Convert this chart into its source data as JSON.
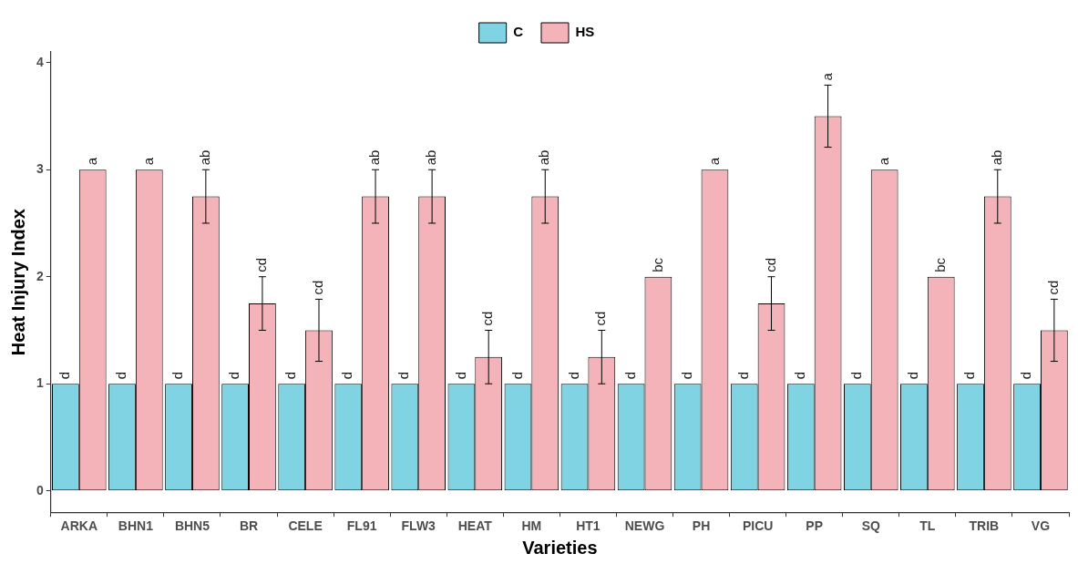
{
  "chart_data": {
    "type": "bar",
    "xlabel": "Varieties",
    "ylabel": "Heat Injury Index",
    "categories": [
      "ARKA",
      "BHN1",
      "BHN5",
      "BR",
      "CELE",
      "FL91",
      "FLW3",
      "HEAT",
      "HM",
      "HT1",
      "NEWG",
      "PH",
      "PICU",
      "PP",
      "SQ",
      "TL",
      "TRIB",
      "VG"
    ],
    "series": [
      {
        "name": "C",
        "color": "#80d3e3",
        "values": [
          1,
          1,
          1,
          1,
          1,
          1,
          1,
          1,
          1,
          1,
          1,
          1,
          1,
          1,
          1,
          1,
          1,
          1
        ],
        "value_labels": [
          "d",
          "d",
          "d",
          "d",
          "d",
          "d",
          "d",
          "d",
          "d",
          "d",
          "d",
          "d",
          "d",
          "d",
          "d",
          "d",
          "d",
          "d"
        ]
      },
      {
        "name": "HS",
        "color": "#f4b3b8",
        "values": [
          3,
          3,
          2.75,
          1.75,
          1.5,
          2.75,
          2.75,
          1.25,
          2.75,
          1.25,
          2,
          3,
          1.75,
          3.5,
          3,
          2,
          2.75,
          1.5
        ],
        "errors": [
          null,
          null,
          0.25,
          0.25,
          0.29,
          0.25,
          0.25,
          0.25,
          0.25,
          0.25,
          null,
          null,
          0.25,
          0.29,
          null,
          null,
          0.25,
          0.29
        ],
        "value_labels": [
          "a",
          "a",
          "ab",
          "cd",
          "cd",
          "ab",
          "ab",
          "cd",
          "ab",
          "cd",
          "bc",
          "a",
          "cd",
          "a",
          "a",
          "bc",
          "ab",
          "cd"
        ]
      }
    ],
    "ylim": [
      -0.2,
      4.1
    ],
    "yticks": [
      0,
      1,
      2,
      3,
      4
    ],
    "grid": false,
    "legend": "top"
  }
}
